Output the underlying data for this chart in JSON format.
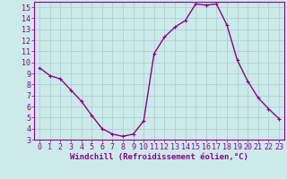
{
  "x": [
    0,
    1,
    2,
    3,
    4,
    5,
    6,
    7,
    8,
    9,
    10,
    11,
    12,
    13,
    14,
    15,
    16,
    17,
    18,
    19,
    20,
    21,
    22,
    23
  ],
  "y": [
    9.5,
    8.8,
    8.5,
    7.5,
    6.5,
    5.2,
    4.0,
    3.5,
    3.3,
    3.5,
    4.7,
    10.8,
    12.3,
    13.2,
    13.8,
    15.3,
    15.2,
    15.3,
    13.4,
    10.2,
    8.3,
    6.8,
    5.8,
    4.9
  ],
  "line_color": "#8B008B",
  "marker": "+",
  "marker_size": 3,
  "marker_linewidth": 0.8,
  "line_width": 1.0,
  "bg_color": "#cceaea",
  "grid_color": "#aacccc",
  "ylim": [
    3,
    15.5
  ],
  "xlim": [
    -0.5,
    23.5
  ],
  "yticks": [
    3,
    4,
    5,
    6,
    7,
    8,
    9,
    10,
    11,
    12,
    13,
    14,
    15
  ],
  "xticks": [
    0,
    1,
    2,
    3,
    4,
    5,
    6,
    7,
    8,
    9,
    10,
    11,
    12,
    13,
    14,
    15,
    16,
    17,
    18,
    19,
    20,
    21,
    22,
    23
  ],
  "tick_color": "#8B008B",
  "label_color": "#8B008B",
  "spine_color": "#8B008B",
  "xlabel": "Windchill (Refroidissement éolien,°C)",
  "xlabel_fontsize": 6.5,
  "tick_fontsize": 6,
  "font_family": "monospace"
}
